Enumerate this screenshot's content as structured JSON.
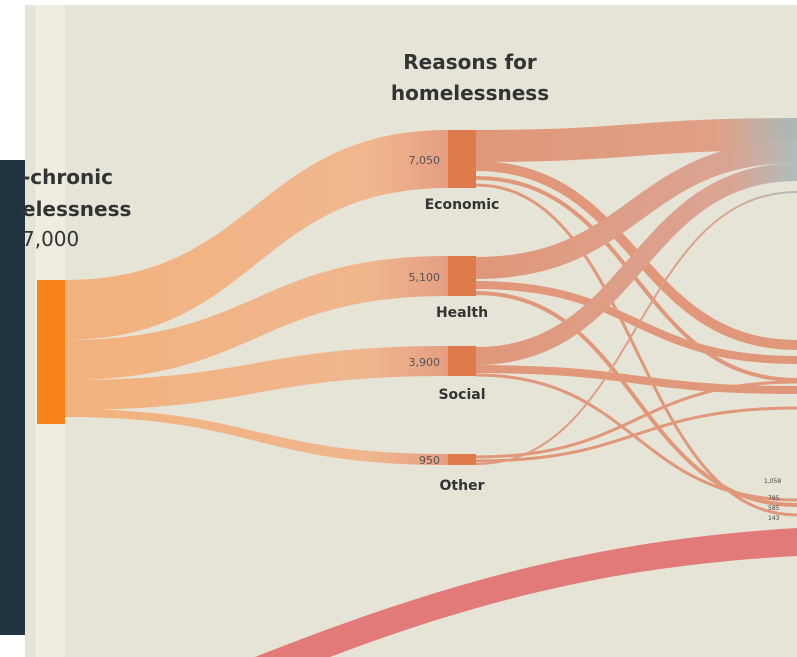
{
  "title": [
    "Reasons for",
    "homelessness"
  ],
  "source": {
    "label": [
      "-chronic",
      "elessness"
    ],
    "value": "7,000"
  },
  "nodes": [
    {
      "label": "Economic",
      "value": "7,050"
    },
    {
      "label": "Health",
      "value": "5,100"
    },
    {
      "label": "Social",
      "value": "3,900"
    },
    {
      "label": "Other",
      "value": "950"
    }
  ],
  "right_labels": [
    "1,058",
    "785",
    "585",
    "143"
  ]
}
